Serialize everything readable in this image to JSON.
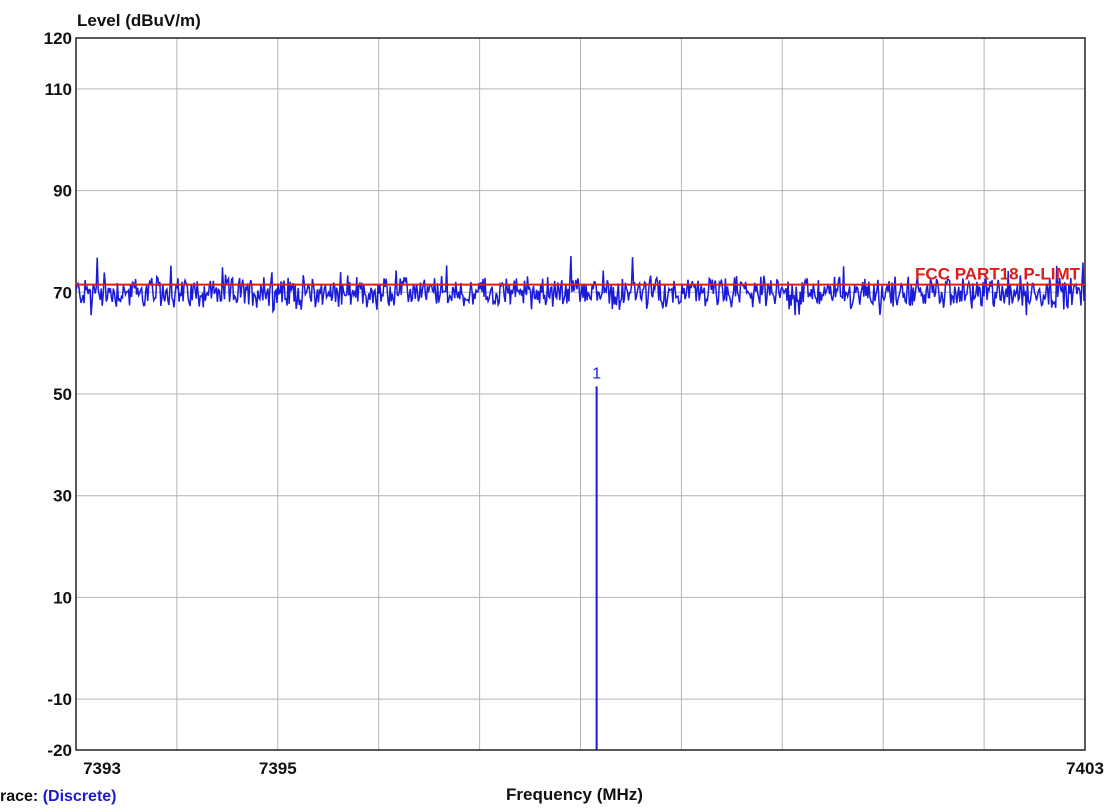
{
  "chart_data": {
    "type": "line",
    "ylabel": "Level (dBuV/m)",
    "xlabel": "Frequency (MHz)",
    "xlim": [
      7393,
      7403
    ],
    "ylim": [
      -20,
      120
    ],
    "y_ticks": [
      120,
      110,
      90,
      70,
      50,
      30,
      10,
      -10,
      -20
    ],
    "x_ticks": [
      7393,
      7395,
      7403
    ],
    "x_gridlines": [
      7393,
      7394,
      7395,
      7396,
      7397,
      7398,
      7399,
      7400,
      7401,
      7402,
      7403
    ],
    "y_gridlines": [
      120,
      110,
      90,
      70,
      50,
      30,
      10,
      -10,
      -20
    ],
    "grid": true,
    "series": [
      {
        "type": "noise-trace",
        "color": "#1a1adb",
        "baseline": 70,
        "range": [
          65.5,
          77.5
        ],
        "num_points": 1000,
        "x_range": [
          7393,
          7403
        ]
      },
      {
        "name": "FCC PART18 P-LIMT",
        "type": "limit-line",
        "color": "#e01a1a",
        "x": [
          7393,
          7403
        ],
        "y": [
          71.5,
          71.5
        ]
      }
    ],
    "markers": [
      {
        "label": "1",
        "x": 7398.16,
        "y": 51.5,
        "color": "#1a1adb"
      }
    ]
  },
  "footer": {
    "trace_prefix": "race:",
    "trace_mode": "(Discrete)"
  }
}
